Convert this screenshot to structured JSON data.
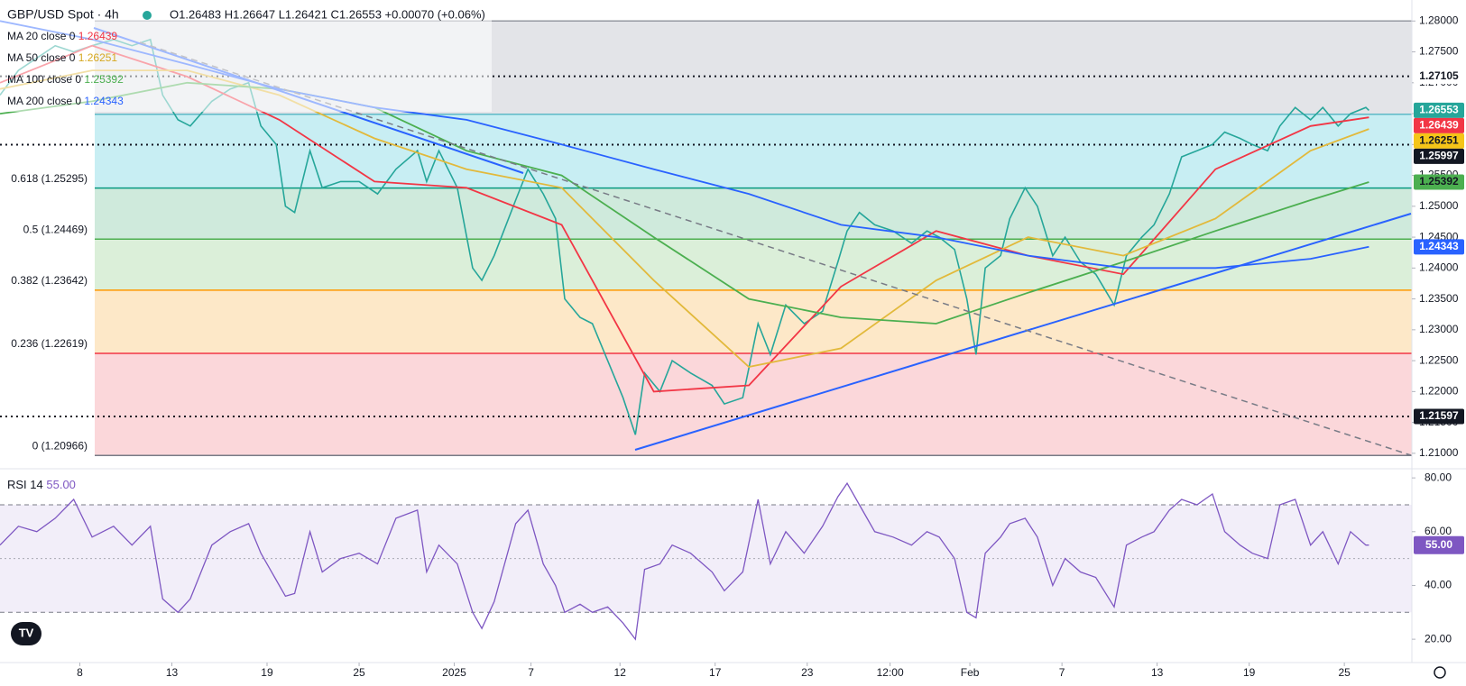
{
  "chart_data": [
    {
      "type": "line",
      "title": "GBP/USD Spot · 4h",
      "subtitle": "O1.26483 H1.26647 L1.26421 C1.26553 +0.00070 (+0.06%)",
      "xlim": [
        0,
        460
      ],
      "ylim": [
        1.2075,
        1.2834
      ],
      "xticks": [
        {
          "value": 26,
          "label": "8"
        },
        {
          "value": 56,
          "label": "13"
        },
        {
          "value": 87,
          "label": "19"
        },
        {
          "value": 117,
          "label": "25"
        },
        {
          "value": 148,
          "label": "2025"
        },
        {
          "value": 173,
          "label": "7"
        },
        {
          "value": 202,
          "label": "12"
        },
        {
          "value": 233,
          "label": "17"
        },
        {
          "value": 263,
          "label": "23"
        },
        {
          "value": 290,
          "label": "12:00"
        },
        {
          "value": 316,
          "label": "Feb"
        },
        {
          "value": 346,
          "label": "7"
        },
        {
          "value": 377,
          "label": "13"
        },
        {
          "value": 407,
          "label": "19"
        },
        {
          "value": 438,
          "label": "25"
        }
      ],
      "yticks": [
        {
          "value": 1.28,
          "label": "1.28000"
        },
        {
          "value": 1.275,
          "label": "1.27500"
        },
        {
          "value": 1.27,
          "label": "1.27000"
        },
        {
          "value": 1.265,
          "label": "1.26500"
        },
        {
          "value": 1.26,
          "label": "1.26000"
        },
        {
          "value": 1.255,
          "label": "1.25500"
        },
        {
          "value": 1.25,
          "label": "1.25000"
        },
        {
          "value": 1.245,
          "label": "1.24500"
        },
        {
          "value": 1.24,
          "label": "1.24000"
        },
        {
          "value": 1.235,
          "label": "1.23500"
        },
        {
          "value": 1.23,
          "label": "1.23000"
        },
        {
          "value": 1.225,
          "label": "1.22500"
        },
        {
          "value": 1.22,
          "label": "1.22000"
        },
        {
          "value": 1.215,
          "label": "1.21500"
        },
        {
          "value": 1.21,
          "label": "1.21000"
        }
      ],
      "series": [
        {
          "name": "GBP/USD",
          "color": "#26a69a",
          "x": [
            0,
            6,
            12,
            18,
            24,
            30,
            37,
            43,
            49,
            53,
            58,
            62,
            69,
            75,
            81,
            85,
            90,
            93,
            96,
            101,
            105,
            111,
            117,
            123,
            129,
            136,
            139,
            143,
            149,
            154,
            157,
            161,
            168,
            172,
            177,
            181,
            184,
            189,
            193,
            198,
            203,
            207,
            210,
            215,
            219,
            225,
            232,
            236,
            242,
            247,
            251,
            256,
            262,
            268,
            273,
            276,
            280,
            285,
            291,
            297,
            302,
            306,
            311,
            315,
            318,
            321,
            326,
            329,
            334,
            338,
            343,
            347,
            352,
            357,
            363,
            367,
            372,
            376,
            381,
            385,
            390,
            395,
            399,
            404,
            408,
            413,
            417,
            422,
            427,
            431,
            436,
            440,
            445,
            446
          ],
          "values": [
            1.268,
            1.272,
            1.274,
            1.276,
            1.275,
            1.276,
            1.277,
            1.276,
            1.277,
            1.268,
            1.264,
            1.263,
            1.267,
            1.269,
            1.27,
            1.263,
            1.26,
            1.25,
            1.249,
            1.259,
            1.253,
            1.254,
            1.254,
            1.252,
            1.256,
            1.259,
            1.254,
            1.259,
            1.253,
            1.24,
            1.238,
            1.242,
            1.251,
            1.256,
            1.252,
            1.248,
            1.235,
            1.232,
            1.231,
            1.225,
            1.219,
            1.213,
            1.223,
            1.22,
            1.225,
            1.223,
            1.221,
            1.218,
            1.219,
            1.231,
            1.226,
            1.234,
            1.231,
            1.233,
            1.241,
            1.246,
            1.249,
            1.247,
            1.246,
            1.244,
            1.246,
            1.245,
            1.243,
            1.235,
            1.226,
            1.24,
            1.242,
            1.248,
            1.253,
            1.25,
            1.242,
            1.245,
            1.241,
            1.239,
            1.234,
            1.242,
            1.245,
            1.247,
            1.252,
            1.258,
            1.259,
            1.26,
            1.262,
            1.261,
            1.26,
            1.259,
            1.263,
            1.266,
            1.264,
            1.266,
            1.263,
            1.265,
            1.266,
            1.26553
          ]
        },
        {
          "name": "MA 20 close 0",
          "last": 1.26439,
          "color": "#f23645",
          "x": [
            0,
            30,
            61,
            91,
            122,
            152,
            183,
            213,
            244,
            274,
            305,
            335,
            366,
            396,
            427,
            446
          ],
          "values": [
            1.27,
            1.276,
            1.271,
            1.264,
            1.254,
            1.253,
            1.247,
            1.22,
            1.221,
            1.237,
            1.246,
            1.242,
            1.239,
            1.256,
            1.263,
            1.26439
          ]
        },
        {
          "name": "MA 50 close 0",
          "last": 1.26251,
          "color": "#e2b93b",
          "x": [
            0,
            30,
            61,
            91,
            122,
            152,
            183,
            213,
            244,
            274,
            305,
            335,
            366,
            396,
            427,
            446
          ],
          "values": [
            1.269,
            1.272,
            1.272,
            1.268,
            1.261,
            1.256,
            1.253,
            1.238,
            1.224,
            1.227,
            1.238,
            1.245,
            1.242,
            1.248,
            1.259,
            1.26251
          ]
        },
        {
          "name": "MA 100 close 0",
          "last": 1.25392,
          "color": "#4caf50",
          "x": [
            0,
            30,
            61,
            91,
            122,
            152,
            183,
            213,
            244,
            274,
            305,
            335,
            366,
            396,
            427,
            446
          ],
          "values": [
            1.265,
            1.267,
            1.27,
            1.269,
            1.266,
            1.259,
            1.255,
            1.245,
            1.235,
            1.232,
            1.231,
            1.236,
            1.241,
            1.246,
            1.251,
            1.25392
          ]
        },
        {
          "name": "MA 200 close 0",
          "last": 1.24343,
          "color": "#2962ff",
          "x": [
            0,
            30,
            61,
            91,
            122,
            152,
            183,
            213,
            244,
            274,
            305,
            335,
            366,
            396,
            427,
            446
          ],
          "values": [
            1.28,
            1.277,
            1.273,
            1.269,
            1.266,
            1.264,
            1.26,
            1.256,
            1.252,
            1.247,
            1.245,
            1.242,
            1.24,
            1.24,
            1.2415,
            1.24343
          ]
        }
      ],
      "fib_levels": [
        {
          "value": 1.28,
          "label": null,
          "color": "#9598a1",
          "band": "#e3e4e8"
        },
        {
          "value": 1.2649,
          "label": null,
          "color": "#5fb8c6",
          "band": "#c8eef3"
        },
        {
          "value": 1.25295,
          "label": "0.618 (1.25295)",
          "color": "#089981",
          "band": "#cfeadc"
        },
        {
          "value": 1.24469,
          "label": "0.5 (1.24469)",
          "color": "#4caf50",
          "band": "#dbefd9"
        },
        {
          "value": 1.23642,
          "label": "0.382 (1.23642)",
          "color": "#ff9800",
          "band": "#fde8c8"
        },
        {
          "value": 1.22619,
          "label": "0.236 (1.22619)",
          "color": "#f23645",
          "band": "#fbd7da"
        },
        {
          "value": 1.20966,
          "label": "0 (1.20966)",
          "color": "#787b86",
          "band": null
        }
      ],
      "price_lines": [
        1.27105,
        1.25997,
        1.21597
      ],
      "badges": [
        {
          "value": 1.27105,
          "color": "#ffffff",
          "text_color": "#131722"
        },
        {
          "value": 1.26553,
          "color": "#26a69a",
          "text_color": "#ffffff"
        },
        {
          "value": 1.26439,
          "color": "#f23645",
          "text_color": "#ffffff"
        },
        {
          "value": 1.26251,
          "color": "#f5c518",
          "text_color": "#131722"
        },
        {
          "value": 1.25997,
          "color": "#131722",
          "text_color": "#ffffff"
        },
        {
          "value": 1.25392,
          "color": "#4caf50",
          "text_color": "#131722"
        },
        {
          "value": 1.24343,
          "color": "#2962ff",
          "text_color": "#ffffff"
        },
        {
          "value": 1.21597,
          "color": "#131722",
          "text_color": "#ffffff"
        }
      ]
    },
    {
      "type": "line",
      "title": "RSI 14",
      "last": 55,
      "last_label": "55.00",
      "ylim": [
        13,
        83.4
      ],
      "yticks": [
        {
          "value": 80,
          "label": "80.00"
        },
        {
          "value": 60,
          "label": "60.00"
        },
        {
          "value": 40,
          "label": "40.00"
        },
        {
          "value": 20,
          "label": "20.00"
        }
      ],
      "band": [
        30,
        70
      ],
      "mid": 50,
      "color": "#7e57c2",
      "x": [
        0,
        6,
        12,
        18,
        24,
        30,
        37,
        43,
        49,
        53,
        58,
        62,
        69,
        75,
        81,
        85,
        90,
        93,
        96,
        101,
        105,
        111,
        117,
        123,
        129,
        136,
        139,
        143,
        149,
        154,
        157,
        161,
        168,
        172,
        177,
        181,
        184,
        189,
        193,
        198,
        203,
        207,
        210,
        215,
        219,
        225,
        232,
        236,
        242,
        247,
        251,
        256,
        262,
        268,
        273,
        276,
        280,
        285,
        291,
        297,
        302,
        306,
        311,
        315,
        318,
        321,
        326,
        329,
        334,
        338,
        343,
        347,
        352,
        357,
        363,
        367,
        372,
        376,
        381,
        385,
        390,
        395,
        399,
        404,
        408,
        413,
        417,
        422,
        427,
        431,
        436,
        440,
        445,
        446
      ],
      "values": [
        55,
        62,
        60,
        65,
        72,
        58,
        62,
        55,
        62,
        35,
        30,
        35,
        55,
        60,
        63,
        52,
        42,
        36,
        37,
        60,
        45,
        50,
        52,
        48,
        65,
        68,
        45,
        55,
        48,
        30,
        24,
        34,
        63,
        68,
        48,
        40,
        30,
        33,
        30,
        32,
        26,
        20,
        46,
        48,
        55,
        52,
        45,
        38,
        45,
        72,
        48,
        60,
        52,
        62,
        73,
        78,
        70,
        60,
        58,
        55,
        60,
        58,
        50,
        30,
        28,
        52,
        58,
        63,
        65,
        58,
        40,
        50,
        45,
        43,
        32,
        55,
        58,
        60,
        68,
        72,
        70,
        74,
        60,
        55,
        52,
        50,
        70,
        72,
        55,
        60,
        48,
        60,
        55,
        55
      ]
    }
  ]
}
